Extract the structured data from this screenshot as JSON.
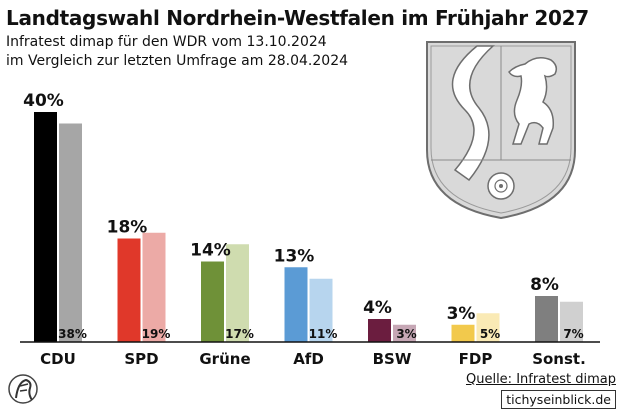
{
  "header": {
    "title": "Landtagswahl Nordrhein-Westfalen im Frühjahr 2027",
    "subtitle1": "Infratest dimap für den WDR vom 13.10.2024",
    "subtitle2": "im Vergleich zur letzten Umfrage am 28.04.2024"
  },
  "footer": {
    "source": "Quelle: Infratest dimap",
    "watermark": "tichyseinblick.de"
  },
  "icons": {
    "coat_of_arms": "nrw-coat-of-arms-icon",
    "logo": "tichys-einblick-logo-icon"
  },
  "chart_data": {
    "type": "bar",
    "categories": [
      "CDU",
      "SPD",
      "Grüne",
      "AfD",
      "BSW",
      "FDP",
      "Sonst."
    ],
    "series": [
      {
        "values": [
          40,
          18,
          14,
          13,
          4,
          3,
          8
        ],
        "labels": [
          "40%",
          "18%",
          "14%",
          "13%",
          "4%",
          "3%",
          "8%"
        ]
      },
      {
        "values": [
          38,
          19,
          17,
          11,
          3,
          5,
          7
        ],
        "labels": [
          "38%",
          "19%",
          "17%",
          "11%",
          "3%",
          "5%",
          "7%"
        ]
      }
    ],
    "colors_current": [
      "#000000",
      "#e0382a",
      "#6f9138",
      "#5b9bd5",
      "#6b1d3f",
      "#f2c94c",
      "#7f7f7f"
    ],
    "colors_previous": [
      "#a6a6a6",
      "#ecaaa6",
      "#cfdcaf",
      "#b7d5ee",
      "#c6a7b5",
      "#faeab5",
      "#d0d0d0"
    ],
    "ylim": [
      0,
      42
    ],
    "grid": false,
    "legend": "none"
  }
}
